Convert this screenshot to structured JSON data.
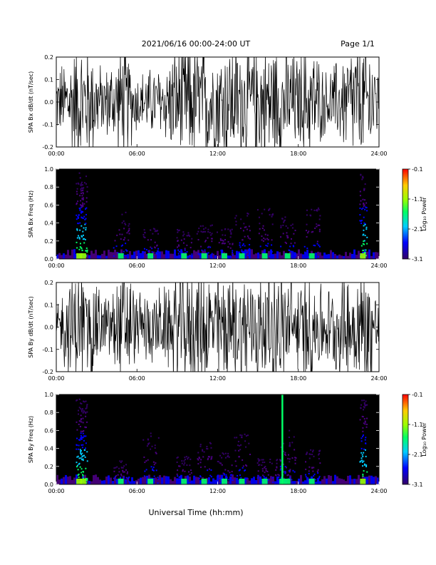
{
  "header": {
    "title": "2021/06/16  00:00-24:00 UT",
    "page": "Page 1/1"
  },
  "footer": {
    "xlabel": "Universal Time (hh:mm)"
  },
  "colors": {
    "background": "#ffffff",
    "trace": "#000000",
    "spectrogram_bg": "#000000",
    "colorbar": [
      "#330066",
      "#0000ff",
      "#00ccff",
      "#00ff66",
      "#99ff00",
      "#ffcc00",
      "#ff0000"
    ]
  },
  "chart_data": [
    {
      "type": "line",
      "ylabel": "SPA Bx dB/dt (nT/sec)",
      "xticks": [
        "00:00",
        "06:00",
        "12:00",
        "18:00",
        "24:00"
      ],
      "yticks": [
        "-0.2",
        "-0.1",
        "0.0",
        "0.1",
        "0.2"
      ],
      "xlim": [
        0,
        24
      ],
      "ylim": [
        -0.2,
        0.2
      ],
      "series": [
        {
          "x": [
            0,
            1.5,
            2.5,
            3.5,
            5,
            6,
            8,
            9,
            10,
            12,
            14,
            16,
            17,
            18,
            19,
            20,
            21,
            22,
            23.5,
            24
          ],
          "values": [
            0.1,
            0.2,
            0.2,
            0.1,
            0.2,
            0.1,
            0.12,
            0.2,
            0.2,
            0.2,
            0.2,
            0.2,
            0.2,
            0.15,
            0.2,
            0.1,
            0.14,
            0.2,
            0.2,
            0.1
          ]
        }
      ]
    },
    {
      "type": "heatmap",
      "ylabel": "SPA Bx Freq (Hz)",
      "xticks": [
        "00:00",
        "06:00",
        "12:00",
        "18:00",
        "24:00"
      ],
      "yticks": [
        "0.0",
        "0.2",
        "0.4",
        "0.6",
        "0.8",
        "1.0"
      ],
      "xlim": [
        0,
        24
      ],
      "ylim": [
        0,
        1
      ],
      "colorbar": {
        "label": "Log₁₀ Power",
        "ticks": [
          "-0.1",
          "-1.1",
          "-2.1",
          "-3.1"
        ],
        "range": [
          -3.1,
          -0.1
        ]
      },
      "bursts_hours": [
        1.7,
        2.0,
        4.8,
        7.0,
        9.5,
        11.0,
        12.5,
        13.8,
        15.5,
        17.2,
        19.0,
        22.8
      ]
    },
    {
      "type": "line",
      "ylabel": "SPA By dB/dt (nT/sec)",
      "xticks": [
        "00:00",
        "06:00",
        "12:00",
        "18:00",
        "24:00"
      ],
      "yticks": [
        "-0.2",
        "-0.1",
        "0.0",
        "0.1",
        "0.2"
      ],
      "xlim": [
        0,
        24
      ],
      "ylim": [
        -0.2,
        0.2
      ],
      "series": [
        {
          "x": [
            0,
            1.5,
            2.5,
            3.5,
            5,
            6,
            8,
            9,
            10,
            12,
            14,
            16,
            17,
            18,
            19,
            20,
            21,
            22,
            23.5,
            24
          ],
          "values": [
            0.08,
            0.2,
            0.2,
            0.1,
            0.2,
            0.12,
            0.12,
            0.2,
            0.2,
            0.2,
            0.2,
            0.2,
            0.2,
            0.15,
            0.2,
            0.12,
            0.15,
            0.2,
            0.2,
            0.1
          ]
        }
      ]
    },
    {
      "type": "heatmap",
      "ylabel": "SPA By Freq (Hz)",
      "xticks": [
        "00:00",
        "06:00",
        "12:00",
        "18:00",
        "24:00"
      ],
      "yticks": [
        "0.0",
        "0.2",
        "0.4",
        "0.6",
        "0.8",
        "1.0"
      ],
      "xlim": [
        0,
        24
      ],
      "ylim": [
        0,
        1
      ],
      "colorbar": {
        "label": "Log₁₀ Power",
        "ticks": [
          "-0.1",
          "-1.1",
          "-2.1",
          "-3.1"
        ],
        "range": [
          -3.1,
          -0.1
        ]
      },
      "bursts_hours": [
        1.7,
        2.0,
        4.8,
        7.0,
        9.5,
        11.0,
        12.5,
        13.8,
        15.5,
        16.8,
        17.2,
        19.0,
        22.8
      ]
    }
  ]
}
